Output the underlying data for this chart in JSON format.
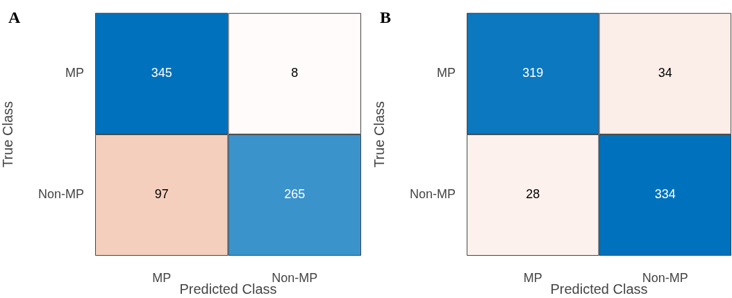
{
  "chart_data": [
    {
      "type": "heatmap",
      "title": "A",
      "xlabel": "Predicted Class",
      "ylabel": "True Class",
      "categories": [
        "MP",
        "Non-MP"
      ],
      "y_categories": [
        "MP",
        "Non-MP"
      ],
      "cells": [
        [
          345,
          8
        ],
        [
          97,
          265
        ]
      ],
      "data_labels": true
    },
    {
      "type": "heatmap",
      "title": "B",
      "xlabel": "Predicted Class",
      "ylabel": "True Class",
      "categories": [
        "MP",
        "Non-MP"
      ],
      "y_categories": [
        "MP",
        "Non-MP"
      ],
      "cells": [
        [
          319,
          34
        ],
        [
          28,
          334
        ]
      ],
      "data_labels": true
    }
  ]
}
